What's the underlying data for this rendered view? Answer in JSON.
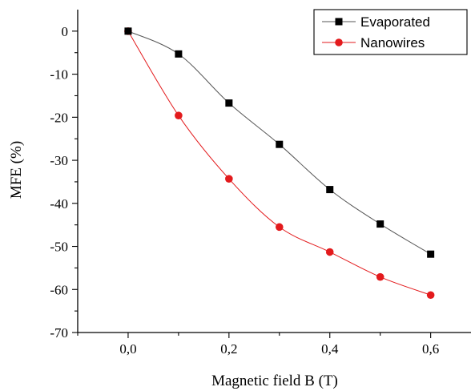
{
  "chart_data": {
    "type": "line",
    "xlabel": "Magnetic field B (T)",
    "ylabel": "MFE (%)",
    "xlim": [
      -0.1,
      0.68
    ],
    "ylim": [
      -70,
      5
    ],
    "x_ticks": [
      0.0,
      0.2,
      0.4,
      0.6
    ],
    "x_tick_labels": [
      "0,0",
      "0,2",
      "0,4",
      "0,6"
    ],
    "x_minor_ticks": [
      -0.1,
      0.1,
      0.3,
      0.5
    ],
    "y_ticks": [
      0,
      -10,
      -20,
      -30,
      -40,
      -50,
      -60,
      -70
    ],
    "y_tick_labels": [
      "0",
      "-10",
      "-20",
      "-30",
      "-40",
      "-50",
      "-60",
      "-70"
    ],
    "grid": false,
    "legend_position": "top-right",
    "x": [
      0.0,
      0.1,
      0.2,
      0.3,
      0.4,
      0.5,
      0.6
    ],
    "series": [
      {
        "name": "Evaporated",
        "marker": "square",
        "color": "#000000",
        "line_color": "#555555",
        "values": [
          0,
          -5.3,
          -16.7,
          -26.3,
          -36.8,
          -44.8,
          -51.8
        ]
      },
      {
        "name": "Nanowires",
        "marker": "circle",
        "color": "#e31a1c",
        "line_color": "#e31a1c",
        "values": [
          0,
          -19.6,
          -34.3,
          -45.5,
          -51.3,
          -57.1,
          -61.3
        ]
      }
    ]
  }
}
